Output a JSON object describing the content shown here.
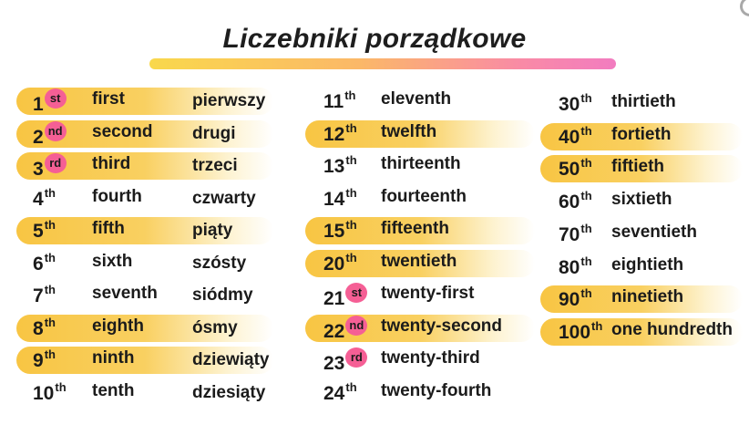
{
  "title": "Liczebniki porządkowe",
  "columns": [
    [
      {
        "n": "1",
        "suffix": "st",
        "word": "first",
        "pl": "pierwszy",
        "highlight": true,
        "dot": true
      },
      {
        "n": "2",
        "suffix": "nd",
        "word": "second",
        "pl": "drugi",
        "highlight": true,
        "dot": true
      },
      {
        "n": "3",
        "suffix": "rd",
        "word": "third",
        "pl": "trzeci",
        "highlight": true,
        "dot": true
      },
      {
        "n": "4",
        "suffix": "th",
        "word": "fourth",
        "pl": "czwarty",
        "highlight": false,
        "dot": false
      },
      {
        "n": "5",
        "suffix": "th",
        "word": "fifth",
        "pl": "piąty",
        "highlight": true,
        "dot": false
      },
      {
        "n": "6",
        "suffix": "th",
        "word": "sixth",
        "pl": "szósty",
        "highlight": false,
        "dot": false
      },
      {
        "n": "7",
        "suffix": "th",
        "word": "seventh",
        "pl": "siódmy",
        "highlight": false,
        "dot": false
      },
      {
        "n": "8",
        "suffix": "th",
        "word": "eighth",
        "pl": "ósmy",
        "highlight": true,
        "dot": false
      },
      {
        "n": "9",
        "suffix": "th",
        "word": "ninth",
        "pl": "dziewiąty",
        "highlight": true,
        "dot": false
      },
      {
        "n": "10",
        "suffix": "th",
        "word": "tenth",
        "pl": "dziesiąty",
        "highlight": false,
        "dot": false
      }
    ],
    [
      {
        "n": "11",
        "suffix": "th",
        "word": "eleventh",
        "highlight": false,
        "dot": false
      },
      {
        "n": "12",
        "suffix": "th",
        "word": "twelfth",
        "highlight": true,
        "dot": false
      },
      {
        "n": "13",
        "suffix": "th",
        "word": "thirteenth",
        "highlight": false,
        "dot": false
      },
      {
        "n": "14",
        "suffix": "th",
        "word": "fourteenth",
        "highlight": false,
        "dot": false
      },
      {
        "n": "15",
        "suffix": "th",
        "word": "fifteenth",
        "highlight": true,
        "dot": false
      },
      {
        "n": "20",
        "suffix": "th",
        "word": "twentieth",
        "highlight": true,
        "dot": false
      },
      {
        "n": "21",
        "suffix": "st",
        "word": "twenty-first",
        "highlight": false,
        "dot": true
      },
      {
        "n": "22",
        "suffix": "nd",
        "word": "twenty-second",
        "highlight": true,
        "dot": true
      },
      {
        "n": "23",
        "suffix": "rd",
        "word": "twenty-third",
        "highlight": false,
        "dot": true
      },
      {
        "n": "24",
        "suffix": "th",
        "word": "twenty-fourth",
        "highlight": false,
        "dot": false
      }
    ],
    [
      {
        "n": "30",
        "suffix": "th",
        "word": "thirtieth",
        "highlight": false,
        "dot": false
      },
      {
        "n": "40",
        "suffix": "th",
        "word": "fortieth",
        "highlight": true,
        "dot": false
      },
      {
        "n": "50",
        "suffix": "th",
        "word": "fiftieth",
        "highlight": true,
        "dot": false
      },
      {
        "n": "60",
        "suffix": "th",
        "word": "sixtieth",
        "highlight": false,
        "dot": false
      },
      {
        "n": "70",
        "suffix": "th",
        "word": "seventieth",
        "highlight": false,
        "dot": false
      },
      {
        "n": "80",
        "suffix": "th",
        "word": "eightieth",
        "highlight": false,
        "dot": false
      },
      {
        "n": "90",
        "suffix": "th",
        "word": "ninetieth",
        "highlight": true,
        "dot": false
      },
      {
        "n": "100",
        "suffix": "th",
        "word": "one hundredth",
        "highlight": true,
        "dot": false
      }
    ]
  ]
}
